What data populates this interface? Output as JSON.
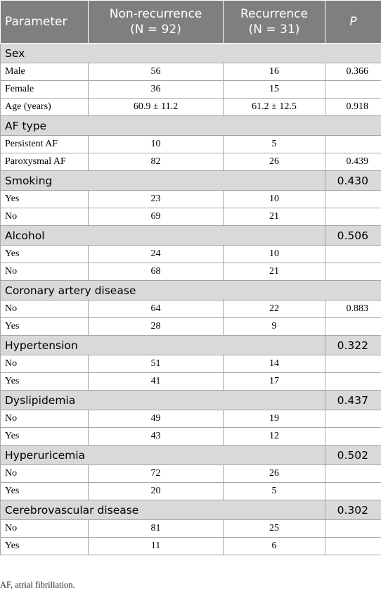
{
  "table": {
    "header": [
      "Parameter",
      [
        "Non-recurrence",
        "(N = 92)"
      ],
      [
        "Recurrence",
        "(N = 31)"
      ],
      "P"
    ],
    "rows": [
      {
        "section": "Sex"
      },
      {
        "label": "Male",
        "cells": [
          "56",
          "16",
          "0.366"
        ]
      },
      {
        "label": "Female",
        "cells": [
          "36",
          "15",
          null
        ]
      },
      {
        "label": "Age (years)",
        "cells": [
          "60.9 ± 11.2",
          "61.2 ± 12.5",
          "0.918"
        ]
      },
      {
        "section": "AF type"
      },
      {
        "label": "Persistent AF",
        "cells": [
          "10",
          "5",
          null
        ]
      },
      {
        "label": "Paroxysmal AF",
        "cells": [
          "82",
          "26",
          "0.439"
        ]
      },
      {
        "section": "Smoking",
        "p": "0.430"
      },
      {
        "label": "Yes",
        "cells": [
          "23",
          "10",
          null
        ]
      },
      {
        "label": "No",
        "cells": [
          "69",
          "21",
          null
        ]
      },
      {
        "section": "Alcohol",
        "p": "0.506"
      },
      {
        "label": "Yes",
        "cells": [
          "24",
          "10",
          null
        ]
      },
      {
        "label": "No",
        "cells": [
          "68",
          "21",
          null
        ]
      },
      {
        "section": "Coronary artery disease"
      },
      {
        "label": "No",
        "cells": [
          "64",
          "22",
          "0.883"
        ]
      },
      {
        "label": "Yes",
        "cells": [
          "28",
          "9",
          null
        ]
      },
      {
        "section": "Hypertension",
        "p": "0.322"
      },
      {
        "label": "No",
        "cells": [
          "51",
          "14",
          null
        ]
      },
      {
        "label": "Yes",
        "cells": [
          "41",
          "17",
          null
        ]
      },
      {
        "section": "Dyslipidemia",
        "p": "0.437"
      },
      {
        "label": "No",
        "cells": [
          "49",
          "19",
          null
        ]
      },
      {
        "label": "Yes",
        "cells": [
          "43",
          "12",
          null
        ]
      },
      {
        "section": "Hyperuricemia",
        "p": "0.502"
      },
      {
        "label": "No",
        "cells": [
          "72",
          "26",
          null
        ]
      },
      {
        "label": "Yes",
        "cells": [
          "20",
          "5",
          null
        ]
      },
      {
        "section": "Cerebrovascular disease",
        "p": "0.302"
      },
      {
        "label": "No",
        "cells": [
          "81",
          "25",
          null
        ]
      },
      {
        "label": "Yes",
        "cells": [
          "11",
          "6",
          null
        ]
      }
    ],
    "footnote": "AF, atrial fibrillation."
  }
}
